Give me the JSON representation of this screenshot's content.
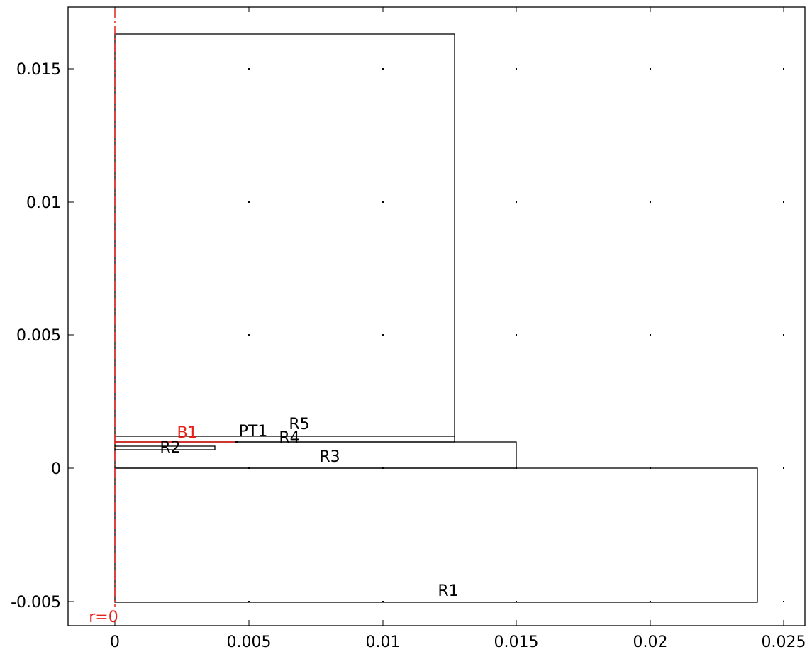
{
  "geometry": {
    "x_ticks": [
      "0",
      "0.005",
      "0.01",
      "0.015",
      "0.02",
      "0.025"
    ],
    "y_ticks": [
      "0.015",
      "0.01",
      "0.005",
      "0",
      "-0.005"
    ],
    "region_labels": {
      "r1": "R1",
      "r2": "R2",
      "r3": "R3",
      "r4": "R4",
      "r5": "R5"
    },
    "point_label": "PT1",
    "boundary_label": "B1",
    "axis_label": "r=0",
    "colors": {
      "outline": "#000000",
      "symmetry_axis": "#e8201a",
      "grid_dot": "#000000"
    }
  }
}
